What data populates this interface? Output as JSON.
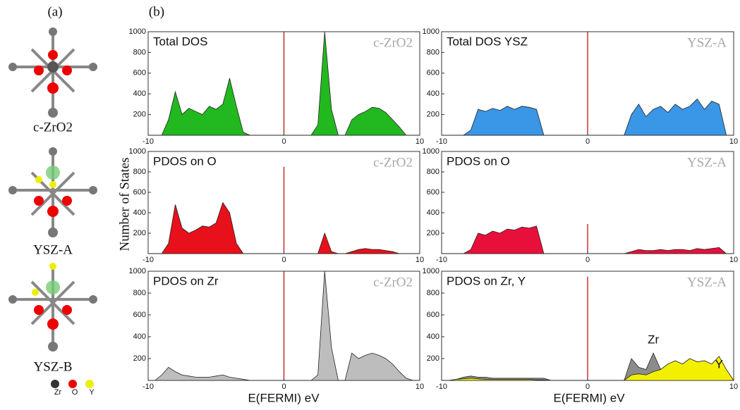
{
  "figure": {
    "panel_a": "(a)",
    "panel_b": "(b)",
    "structures": [
      "c-ZrO2",
      "YSZ-A",
      "YSZ-B"
    ],
    "legend": [
      "Zr",
      "O",
      "Y"
    ],
    "ylabel": "Number of States",
    "xlabels": [
      "E(FERMI) eV",
      "E(FERMI) eV"
    ]
  },
  "chart_data": [
    {
      "type": "area",
      "title": "Total  DOS",
      "annotation": "c-ZrO2",
      "xlim": [
        -10,
        10
      ],
      "xticks": [
        -10,
        0,
        10
      ],
      "ylim": [
        0,
        1000
      ],
      "yticks": [
        200,
        400,
        600,
        800,
        1000
      ],
      "vline": {
        "x": 0,
        "ymax": 1000
      },
      "x": [
        -10,
        -9.5,
        -9,
        -8.5,
        -8,
        -7.5,
        -7,
        -6.5,
        -6,
        -5.5,
        -5,
        -4.5,
        -4,
        -3.5,
        -3,
        -2.5,
        -2,
        -1.5,
        -1,
        -0.5,
        0,
        0.5,
        1,
        1.5,
        2,
        2.5,
        3,
        3.5,
        4,
        4.5,
        5,
        5.5,
        6,
        6.5,
        7,
        7.5,
        8,
        8.5,
        9,
        9.5,
        10
      ],
      "series": [
        {
          "color": "#22b81f",
          "values": [
            0,
            0,
            0,
            150,
            420,
            200,
            260,
            230,
            200,
            280,
            250,
            300,
            550,
            280,
            30,
            0,
            0,
            0,
            0,
            0,
            0,
            0,
            0,
            0,
            0,
            100,
            1000,
            250,
            0,
            0,
            150,
            200,
            230,
            270,
            260,
            220,
            150,
            80,
            0,
            0,
            0
          ]
        }
      ]
    },
    {
      "type": "area",
      "title": "PDOS on O",
      "annotation": "c-ZrO2",
      "xlim": [
        -10,
        10
      ],
      "xticks": [
        -10,
        0,
        10
      ],
      "ylim": [
        0,
        1000
      ],
      "yticks": [
        200,
        400,
        600,
        800,
        1000
      ],
      "vline": {
        "x": 0,
        "ymax": 850
      },
      "x": [
        -10,
        -9.5,
        -9,
        -8.5,
        -8,
        -7.5,
        -7,
        -6.5,
        -6,
        -5.5,
        -5,
        -4.5,
        -4,
        -3.5,
        -3,
        -2.5,
        -2,
        -1.5,
        -1,
        -0.5,
        0,
        0.5,
        1,
        1.5,
        2,
        2.5,
        3,
        3.5,
        4,
        4.5,
        5,
        5.5,
        6,
        6.5,
        7,
        7.5,
        8,
        8.5,
        9,
        9.5,
        10
      ],
      "series": [
        {
          "color": "#e8101a",
          "values": [
            0,
            0,
            0,
            100,
            480,
            250,
            200,
            230,
            270,
            260,
            300,
            500,
            400,
            100,
            0,
            0,
            0,
            0,
            0,
            0,
            0,
            0,
            0,
            0,
            0,
            0,
            200,
            20,
            0,
            0,
            20,
            40,
            50,
            40,
            40,
            30,
            20,
            0,
            0,
            0,
            0
          ]
        }
      ]
    },
    {
      "type": "area",
      "title": "PDOS on Zr",
      "annotation": "c-ZrO2",
      "xlim": [
        -10,
        10
      ],
      "xticks": [
        -10,
        0,
        10
      ],
      "ylim": [
        0,
        1000
      ],
      "yticks": [
        200,
        400,
        600,
        800,
        1000
      ],
      "vline": {
        "x": 0,
        "ymax": 1000
      },
      "x": [
        -10,
        -9.5,
        -9,
        -8.5,
        -8,
        -7.5,
        -7,
        -6.5,
        -6,
        -5.5,
        -5,
        -4.5,
        -4,
        -3.5,
        -3,
        -2.5,
        -2,
        -1.5,
        -1,
        -0.5,
        0,
        0.5,
        1,
        1.5,
        2,
        2.5,
        3,
        3.5,
        4,
        4.5,
        5,
        5.5,
        6,
        6.5,
        7,
        7.5,
        8,
        8.5,
        9,
        9.5,
        10
      ],
      "series": [
        {
          "color": "#bdbdbd",
          "values": [
            0,
            0,
            50,
            120,
            80,
            50,
            40,
            30,
            30,
            30,
            40,
            50,
            30,
            20,
            10,
            0,
            0,
            0,
            0,
            0,
            0,
            0,
            0,
            0,
            0,
            50,
            1000,
            300,
            0,
            0,
            250,
            200,
            230,
            250,
            230,
            200,
            150,
            80,
            20,
            0,
            0
          ]
        }
      ]
    },
    {
      "type": "area",
      "title": "Total  DOS YSZ",
      "annotation": "YSZ-A",
      "xlim": [
        -10,
        10
      ],
      "xticks": [
        -10,
        0,
        10
      ],
      "ylim": [
        0,
        1000
      ],
      "yticks": [
        200,
        400,
        600,
        800,
        1000
      ],
      "vline": {
        "x": 0,
        "ymax": 1000
      },
      "x": [
        -10,
        -9.5,
        -9,
        -8.5,
        -8,
        -7.5,
        -7,
        -6.5,
        -6,
        -5.5,
        -5,
        -4.5,
        -4,
        -3.5,
        -3,
        -2.5,
        -2,
        -1.5,
        -1,
        -0.5,
        0,
        0.5,
        1,
        1.5,
        2,
        2.5,
        3,
        3.5,
        4,
        4.5,
        5,
        5.5,
        6,
        6.5,
        7,
        7.5,
        8,
        8.5,
        9,
        9.5,
        10
      ],
      "series": [
        {
          "color": "#3a96e6",
          "values": [
            0,
            0,
            0,
            0,
            50,
            250,
            230,
            260,
            240,
            280,
            250,
            280,
            270,
            250,
            0,
            0,
            0,
            0,
            0,
            0,
            0,
            0,
            0,
            0,
            0,
            0,
            200,
            300,
            180,
            250,
            280,
            220,
            300,
            250,
            280,
            350,
            250,
            330,
            300,
            0,
            0
          ]
        }
      ]
    },
    {
      "type": "area",
      "title": "PDOS on O",
      "annotation": "YSZ-A",
      "xlim": [
        -10,
        10
      ],
      "xticks": [
        -10,
        0,
        10
      ],
      "ylim": [
        0,
        1000
      ],
      "yticks": [
        200,
        400,
        600,
        800,
        1000
      ],
      "vline": {
        "x": 0,
        "ymax": 290
      },
      "x": [
        -10,
        -9.5,
        -9,
        -8.5,
        -8,
        -7.5,
        -7,
        -6.5,
        -6,
        -5.5,
        -5,
        -4.5,
        -4,
        -3.5,
        -3,
        -2.5,
        -2,
        -1.5,
        -1,
        -0.5,
        0,
        0.5,
        1,
        1.5,
        2,
        2.5,
        3,
        3.5,
        4,
        4.5,
        5,
        5.5,
        6,
        6.5,
        7,
        7.5,
        8,
        8.5,
        9,
        9.5,
        10
      ],
      "series": [
        {
          "color": "#e8103a",
          "values": [
            0,
            0,
            0,
            0,
            40,
            200,
            180,
            220,
            200,
            240,
            230,
            260,
            250,
            270,
            0,
            0,
            0,
            0,
            0,
            0,
            0,
            0,
            0,
            0,
            0,
            0,
            20,
            40,
            30,
            30,
            40,
            30,
            40,
            40,
            30,
            50,
            40,
            50,
            60,
            0,
            0
          ]
        }
      ]
    },
    {
      "type": "area",
      "title": "PDOS on Zr, Y",
      "annotation": "YSZ-A",
      "xlim": [
        -10,
        10
      ],
      "xticks": [
        -10,
        0,
        10
      ],
      "ylim": [
        0,
        1000
      ],
      "yticks": [
        200,
        400,
        600,
        800,
        1000
      ],
      "vline": {
        "x": 0,
        "ymax": 950
      },
      "x": [
        -10,
        -9.5,
        -9,
        -8.5,
        -8,
        -7.5,
        -7,
        -6.5,
        -6,
        -5.5,
        -5,
        -4.5,
        -4,
        -3.5,
        -3,
        -2.5,
        -2,
        -1.5,
        -1,
        -0.5,
        0,
        0.5,
        1,
        1.5,
        2,
        2.5,
        3,
        3.5,
        4,
        4.5,
        5,
        5.5,
        6,
        6.5,
        7,
        7.5,
        8,
        8.5,
        9,
        9.5,
        10
      ],
      "series": [
        {
          "name": "Zr",
          "color": "#8c8c8c",
          "values": [
            0,
            0,
            10,
            30,
            40,
            30,
            30,
            20,
            20,
            20,
            20,
            20,
            20,
            20,
            20,
            0,
            0,
            0,
            0,
            0,
            0,
            0,
            0,
            0,
            0,
            0,
            200,
            120,
            100,
            250,
            100,
            0,
            0,
            0,
            0,
            0,
            0,
            0,
            0,
            0,
            0
          ]
        },
        {
          "name": "Y",
          "color": "#f2f000",
          "values": [
            0,
            0,
            10,
            15,
            20,
            15,
            10,
            10,
            10,
            10,
            10,
            10,
            10,
            5,
            5,
            0,
            0,
            0,
            0,
            0,
            0,
            0,
            0,
            0,
            0,
            0,
            50,
            60,
            50,
            80,
            100,
            150,
            180,
            150,
            200,
            170,
            180,
            150,
            220,
            100,
            0
          ]
        }
      ]
    }
  ]
}
